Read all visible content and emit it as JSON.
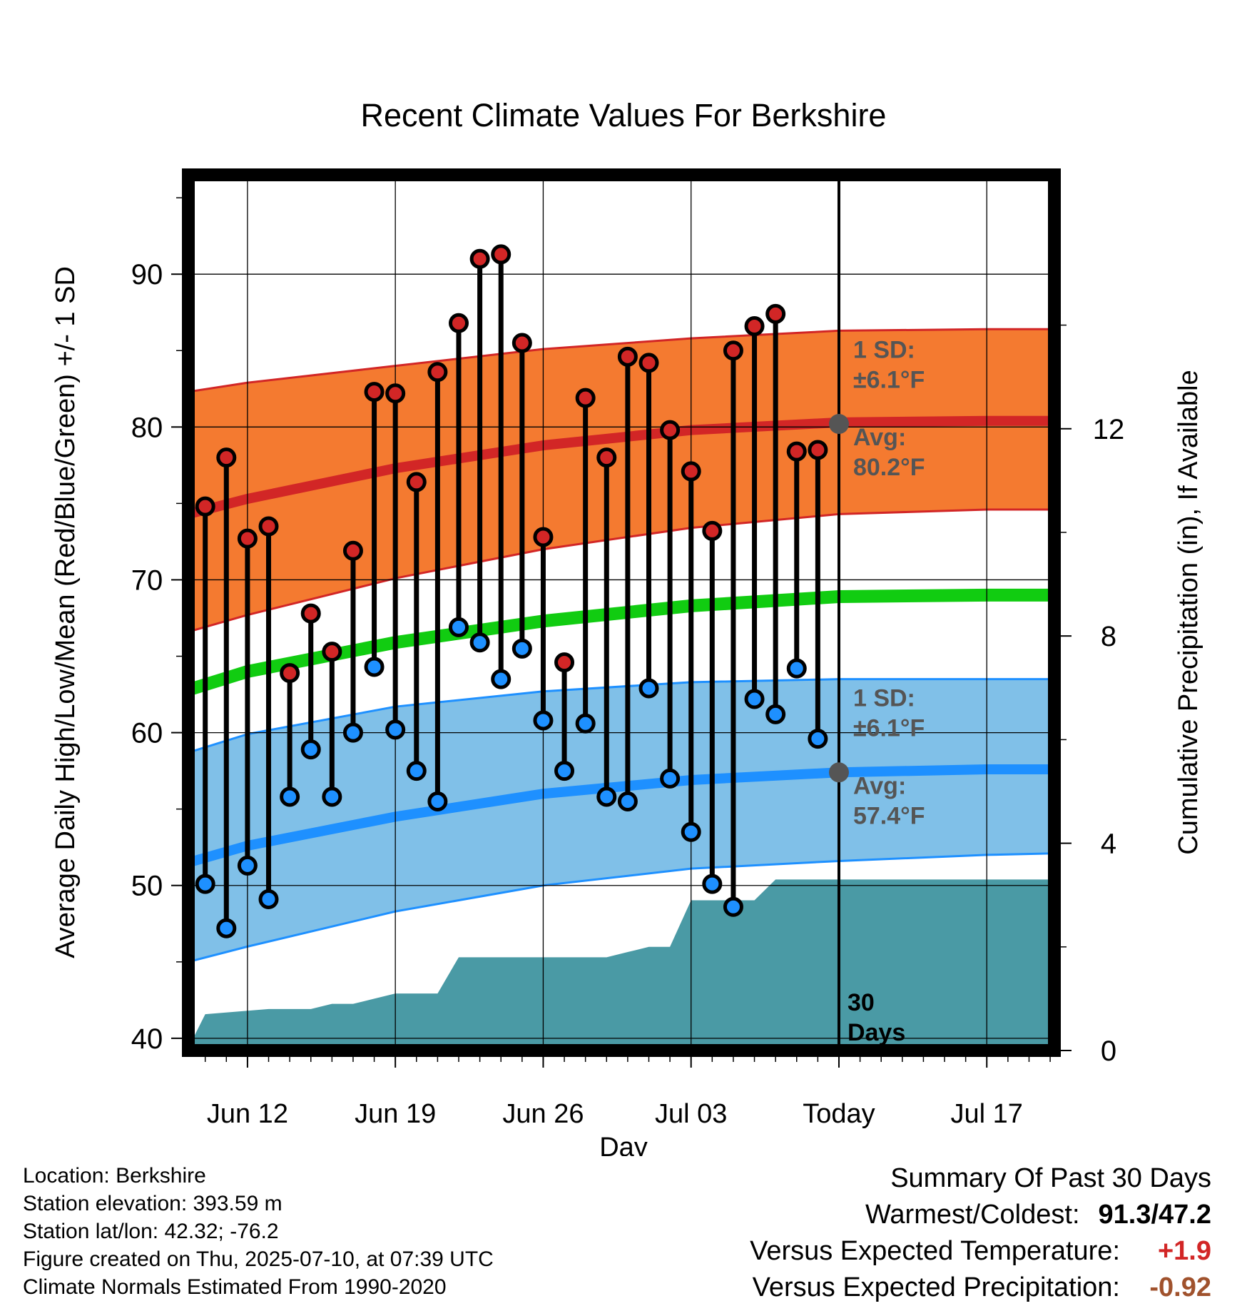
{
  "chart_data": {
    "type": "line",
    "title": "Recent Climate Values For Berkshire",
    "xlabel": "Day",
    "ylabel": "Average Daily High/Low/Mean (Red/Blue/Green) +/- 1 SD",
    "y2label": "Cumulative Precipitation (in), If Available",
    "ylim": [
      39.2,
      96.5
    ],
    "y2lim": [
      0,
      16.9
    ],
    "xlim": [
      -2.8,
      38.2
    ],
    "x_axis_note": "x values are days relative to Jun 12",
    "x_ticks": [
      {
        "x": 0,
        "label": "Jun 12"
      },
      {
        "x": 7,
        "label": "Jun 19"
      },
      {
        "x": 14,
        "label": "Jun 26"
      },
      {
        "x": 21,
        "label": "Jul 03"
      },
      {
        "x": 28,
        "label": "Today"
      },
      {
        "x": 35,
        "label": "Jul 17"
      }
    ],
    "y_ticks": [
      40,
      50,
      60,
      70,
      80,
      90
    ],
    "y2_ticks": [
      0,
      4,
      8,
      12
    ],
    "grid": true,
    "today_x": 28,
    "today_label_line1": "30",
    "today_label_line2": "Days",
    "daily_high": {
      "name": "High",
      "color": "#d22626",
      "x": [
        -2,
        -1,
        0,
        1,
        2,
        3,
        4,
        5,
        6,
        7,
        8,
        9,
        10,
        11,
        12,
        13,
        14,
        15,
        16,
        17,
        18,
        19,
        20,
        21,
        22,
        23,
        24,
        25,
        26,
        27
      ],
      "values": [
        74.8,
        78.0,
        72.7,
        73.5,
        63.9,
        67.8,
        65.3,
        71.9,
        82.3,
        82.2,
        76.4,
        83.6,
        86.8,
        91.0,
        91.3,
        85.5,
        72.8,
        64.6,
        81.9,
        78.0,
        84.6,
        84.2,
        79.8,
        77.1,
        73.2,
        85.0,
        86.6,
        87.4,
        78.4,
        78.5
      ]
    },
    "daily_low": {
      "name": "Low",
      "color": "#1e90ff",
      "x": [
        -2,
        -1,
        0,
        1,
        2,
        3,
        4,
        5,
        6,
        7,
        8,
        9,
        10,
        11,
        12,
        13,
        14,
        15,
        16,
        17,
        18,
        19,
        20,
        21,
        22,
        23,
        24,
        25,
        26,
        27
      ],
      "values": [
        50.1,
        47.2,
        51.3,
        49.1,
        55.8,
        58.9,
        55.8,
        60.0,
        64.3,
        60.2,
        57.5,
        55.5,
        66.9,
        65.9,
        63.5,
        65.5,
        60.8,
        57.5,
        60.6,
        55.8,
        55.5,
        62.9,
        57.0,
        53.5,
        50.1,
        48.6,
        62.2,
        61.2,
        64.2,
        59.6
      ]
    },
    "normals": {
      "x": [
        -2.8,
        0,
        7,
        14,
        21,
        28,
        35,
        38.2
      ],
      "high_avg": [
        74.3,
        75.3,
        77.3,
        78.8,
        79.8,
        80.3,
        80.4,
        80.4
      ],
      "high_sd_upper": [
        82.3,
        82.9,
        84.0,
        85.1,
        85.8,
        86.3,
        86.4,
        86.4
      ],
      "high_sd_lower": [
        66.6,
        67.7,
        70.1,
        72.0,
        73.4,
        74.3,
        74.6,
        74.6
      ],
      "low_avg": [
        51.5,
        52.6,
        54.5,
        56.0,
        56.9,
        57.4,
        57.6,
        57.6
      ],
      "low_sd_upper": [
        58.7,
        59.9,
        61.7,
        62.7,
        63.3,
        63.5,
        63.5,
        63.5
      ],
      "low_sd_lower": [
        45.0,
        46.0,
        48.3,
        50.0,
        51.1,
        51.6,
        52.0,
        52.1
      ],
      "mean_avg": [
        62.8,
        64.0,
        65.9,
        67.3,
        68.3,
        68.9,
        69.0,
        69.0
      ]
    },
    "precip_cumulative": {
      "name": "Cumulative Precipitation",
      "color": "#4a9aa5",
      "x": [
        -2.8,
        -2,
        1,
        3,
        4,
        5,
        6,
        7,
        8,
        9,
        10,
        11,
        12,
        13,
        14,
        15,
        16,
        17,
        18,
        19,
        20,
        21,
        22,
        23,
        24,
        25,
        26,
        27,
        28,
        38.2
      ],
      "values": [
        0.05,
        0.7,
        0.8,
        0.8,
        0.9,
        0.9,
        1.0,
        1.1,
        1.1,
        1.1,
        1.8,
        1.8,
        1.8,
        1.8,
        1.8,
        1.8,
        1.8,
        1.8,
        1.9,
        2.0,
        2.0,
        2.9,
        2.9,
        2.9,
        2.9,
        3.3,
        3.3,
        3.3,
        3.3,
        3.3
      ]
    },
    "annotations": [
      {
        "line1": "1 SD:",
        "line2": "±6.1°F",
        "color": "#555555",
        "series": "high"
      },
      {
        "line1": "Avg:",
        "line2": "80.2°F",
        "color": "#555555",
        "series": "high"
      },
      {
        "line1": "1 SD:",
        "line2": "±6.1°F",
        "color": "#555555",
        "series": "low"
      },
      {
        "line1": "Avg:",
        "line2": "57.4°F",
        "color": "#555555",
        "series": "low"
      }
    ],
    "today_marker_values": {
      "high": 80.2,
      "low": 57.4
    },
    "colors": {
      "high_band": "#f47a30",
      "high_line": "#d22626",
      "low_band": "#80c0e8",
      "low_line": "#1e90ff",
      "mean_line": "#11cc11",
      "precip": "#4a9aa5",
      "today_dot": "#555555"
    }
  },
  "footer": {
    "location": "Location: Berkshire",
    "elevation": "Station elevation: 393.59 m",
    "latlon": "Station lat/lon: 42.32; -76.2",
    "created": "Figure created on Thu, 2025-07-10, at 07:39 UTC",
    "normals": "Climate Normals Estimated From 1990-2020"
  },
  "summary": {
    "title": "Summary Of Past 30 Days",
    "warm_cold_label": "Warmest/Coldest:",
    "warm_cold_value": "91.3/47.2",
    "temp_label": "Versus Expected Temperature:",
    "temp_value": "+1.9",
    "temp_color": "#d22626",
    "precip_label": "Versus Expected Precipitation:",
    "precip_value": "-0.92",
    "precip_color": "#a0522d"
  }
}
